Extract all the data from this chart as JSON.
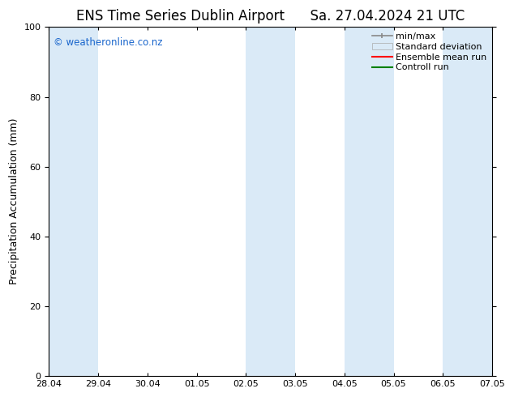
{
  "title_left": "ENS Time Series Dublin Airport",
  "title_right": "Sa. 27.04.2024 21 UTC",
  "ylabel": "Precipitation Accumulation (mm)",
  "xlabel": "",
  "ylim": [
    0,
    100
  ],
  "yticks": [
    0,
    20,
    40,
    60,
    80,
    100
  ],
  "xtick_labels": [
    "28.04",
    "29.04",
    "30.04",
    "01.05",
    "02.05",
    "03.05",
    "04.05",
    "05.05",
    "06.05",
    "07.05"
  ],
  "xtick_positions": [
    0,
    1,
    2,
    3,
    4,
    5,
    6,
    7,
    8,
    9
  ],
  "watermark": "© weatheronline.co.nz",
  "watermark_color": "#1a66cc",
  "background_color": "#ffffff",
  "shade_color": "#daeaf7",
  "shade_regions": [
    [
      0,
      1
    ],
    [
      4,
      5
    ],
    [
      6,
      7
    ],
    [
      8,
      9
    ]
  ],
  "title_fontsize": 12,
  "axis_fontsize": 9,
  "tick_fontsize": 8,
  "legend_fontsize": 8
}
